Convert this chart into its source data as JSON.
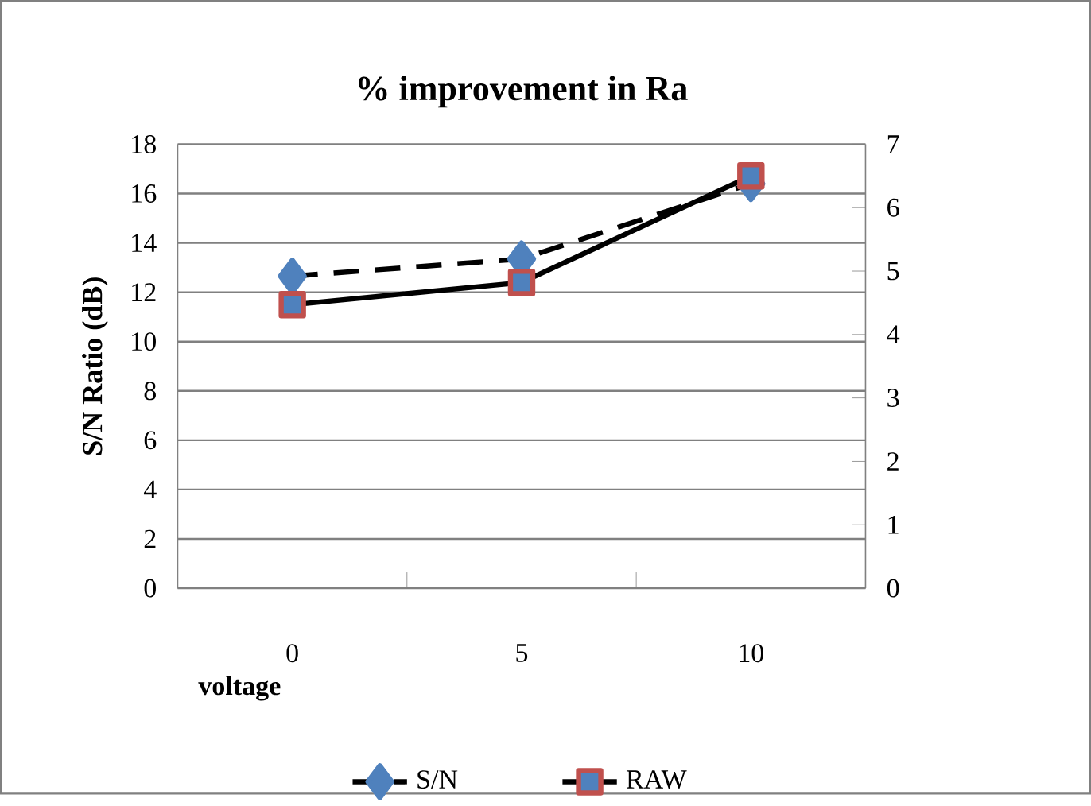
{
  "chart_data": {
    "type": "line",
    "title": "% improvement in Ra",
    "xlabel": "voltage",
    "ylabel": "S/N Ratio (dB)",
    "categories": [
      "0",
      "5",
      "10"
    ],
    "series": [
      {
        "name": "S/N",
        "color": "#000000",
        "values": [
          12.65,
          13.35,
          16.4
        ],
        "marker": "diamond",
        "line_style": "dashed"
      },
      {
        "name": "RAW",
        "color": "#000000",
        "values": [
          4.47,
          4.82,
          6.5
        ],
        "marker": "square",
        "line_style": "solid",
        "axis": "y2"
      }
    ],
    "ylim": [
      0,
      18
    ],
    "yticks": [
      0,
      2,
      4,
      6,
      8,
      10,
      12,
      14,
      16,
      18
    ],
    "y2lim": [
      0,
      7
    ],
    "y2ticks": [
      0,
      1,
      2,
      3,
      4,
      5,
      6,
      7
    ],
    "grid": "y",
    "legend": "bottom"
  }
}
